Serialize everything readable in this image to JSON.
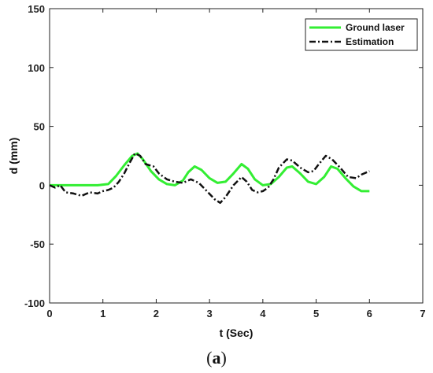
{
  "caption": {
    "prefix": "(",
    "label": "a",
    "suffix": ")"
  },
  "chart_data": {
    "type": "line",
    "xlabel": "t (Sec)",
    "ylabel": "d (mm)",
    "xlim": [
      0,
      7
    ],
    "ylim": [
      -100,
      150
    ],
    "xticks": [
      0,
      1,
      2,
      3,
      4,
      5,
      6,
      7
    ],
    "yticks": [
      -100,
      -50,
      0,
      50,
      100,
      150
    ],
    "grid": false,
    "legend_position": "top-right",
    "series": [
      {
        "name": "Ground laser",
        "color": "#33ee33",
        "style": "solid",
        "points": [
          [
            0,
            0
          ],
          [
            0.5,
            0
          ],
          [
            0.9,
            0
          ],
          [
            1.1,
            1
          ],
          [
            1.25,
            8
          ],
          [
            1.4,
            17
          ],
          [
            1.55,
            25
          ],
          [
            1.65,
            27
          ],
          [
            1.75,
            22
          ],
          [
            1.9,
            12
          ],
          [
            2.05,
            5
          ],
          [
            2.2,
            1
          ],
          [
            2.35,
            0
          ],
          [
            2.5,
            4
          ],
          [
            2.6,
            11
          ],
          [
            2.72,
            16
          ],
          [
            2.85,
            13
          ],
          [
            3.0,
            6
          ],
          [
            3.15,
            2
          ],
          [
            3.3,
            3
          ],
          [
            3.45,
            10
          ],
          [
            3.6,
            18
          ],
          [
            3.72,
            14
          ],
          [
            3.85,
            5
          ],
          [
            4.0,
            0
          ],
          [
            4.15,
            1
          ],
          [
            4.3,
            7
          ],
          [
            4.45,
            15
          ],
          [
            4.55,
            16
          ],
          [
            4.7,
            10
          ],
          [
            4.85,
            3
          ],
          [
            5.0,
            1
          ],
          [
            5.15,
            7
          ],
          [
            5.28,
            16
          ],
          [
            5.4,
            14
          ],
          [
            5.55,
            6
          ],
          [
            5.7,
            -1
          ],
          [
            5.85,
            -5
          ],
          [
            6.0,
            -5
          ]
        ]
      },
      {
        "name": "Estimation",
        "color": "#111111",
        "style": "dash-dot",
        "points": [
          [
            0,
            0
          ],
          [
            0.1,
            -2
          ],
          [
            0.2,
            0
          ],
          [
            0.3,
            -6
          ],
          [
            0.45,
            -7
          ],
          [
            0.6,
            -9
          ],
          [
            0.75,
            -6
          ],
          [
            0.9,
            -7
          ],
          [
            1.0,
            -5
          ],
          [
            1.1,
            -4
          ],
          [
            1.2,
            -2
          ],
          [
            1.3,
            3
          ],
          [
            1.4,
            10
          ],
          [
            1.5,
            19
          ],
          [
            1.6,
            27
          ],
          [
            1.7,
            25
          ],
          [
            1.8,
            18
          ],
          [
            1.95,
            16
          ],
          [
            2.05,
            10
          ],
          [
            2.2,
            5
          ],
          [
            2.35,
            3
          ],
          [
            2.5,
            2
          ],
          [
            2.65,
            5
          ],
          [
            2.8,
            2
          ],
          [
            2.95,
            -5
          ],
          [
            3.1,
            -12
          ],
          [
            3.2,
            -15
          ],
          [
            3.3,
            -10
          ],
          [
            3.45,
            0
          ],
          [
            3.6,
            7
          ],
          [
            3.7,
            3
          ],
          [
            3.8,
            -4
          ],
          [
            3.9,
            -6
          ],
          [
            4.0,
            -5
          ],
          [
            4.1,
            -2
          ],
          [
            4.2,
            5
          ],
          [
            4.3,
            15
          ],
          [
            4.45,
            22
          ],
          [
            4.55,
            21
          ],
          [
            4.7,
            15
          ],
          [
            4.85,
            11
          ],
          [
            4.95,
            12
          ],
          [
            5.05,
            18
          ],
          [
            5.18,
            25
          ],
          [
            5.3,
            22
          ],
          [
            5.45,
            15
          ],
          [
            5.6,
            7
          ],
          [
            5.75,
            6
          ],
          [
            5.85,
            9
          ],
          [
            6.0,
            12
          ]
        ]
      }
    ]
  }
}
